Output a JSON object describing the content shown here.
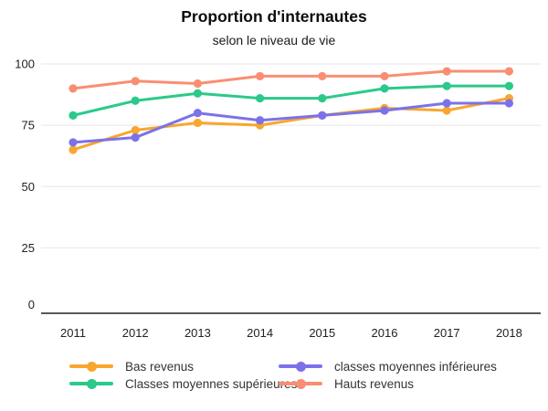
{
  "header": {
    "title": "Proportion d'internautes",
    "subtitle": "selon le niveau de vie"
  },
  "chart_data": {
    "type": "line",
    "title": "Proportion d'internautes",
    "subtitle": "selon le niveau de vie",
    "x": [
      "2011",
      "2012",
      "2013",
      "2014",
      "2015",
      "2016",
      "2017",
      "2018"
    ],
    "series": [
      {
        "name": "Bas revenus",
        "color": "#F9A62E",
        "values": [
          65,
          73,
          76,
          75,
          79,
          82,
          81,
          86
        ]
      },
      {
        "name": "classes moyennes inférieures",
        "color": "#7B72E9",
        "values": [
          68,
          70,
          80,
          77,
          79,
          81,
          84,
          84
        ]
      },
      {
        "name": "Classes moyennes supérieures",
        "color": "#2BC98A",
        "values": [
          79,
          85,
          88,
          86,
          86,
          90,
          91,
          91
        ]
      },
      {
        "name": "Hauts revenus",
        "color": "#F98E72",
        "values": [
          90,
          93,
          92,
          95,
          95,
          95,
          97,
          97
        ]
      }
    ],
    "xlabel": "",
    "ylabel": "",
    "ylim": [
      0,
      100
    ],
    "yticks": [
      0,
      25,
      50,
      75,
      100
    ],
    "grid": true,
    "legend_position": "bottom"
  },
  "legend": {
    "items": [
      {
        "label": "Bas revenus",
        "color": "#F9A62E"
      },
      {
        "label": "classes moyennes inférieures",
        "color": "#7B72E9"
      },
      {
        "label": "Classes moyennes supérieures",
        "color": "#2BC98A"
      },
      {
        "label": "Hauts revenus",
        "color": "#F98E72"
      }
    ]
  },
  "colors": {
    "grid": "#e7e7e7",
    "axis": "#222222",
    "tick_text": "#222222"
  }
}
